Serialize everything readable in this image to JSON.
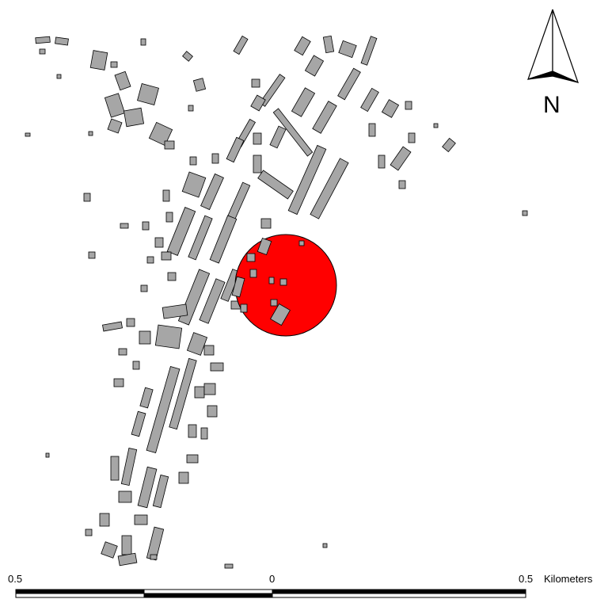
{
  "map": {
    "building_fill": "#a6a6a6",
    "outline_color": "#000000",
    "buffer_color": "#ff0000",
    "highlight_building_fill": "#c8a878"
  },
  "north_arrow": {
    "letter": "N",
    "icon": "north-arrow-icon"
  },
  "scale_bar": {
    "left_label": "0.5",
    "center_label": "0",
    "right_label": "0.5",
    "units": "Kilometers"
  }
}
